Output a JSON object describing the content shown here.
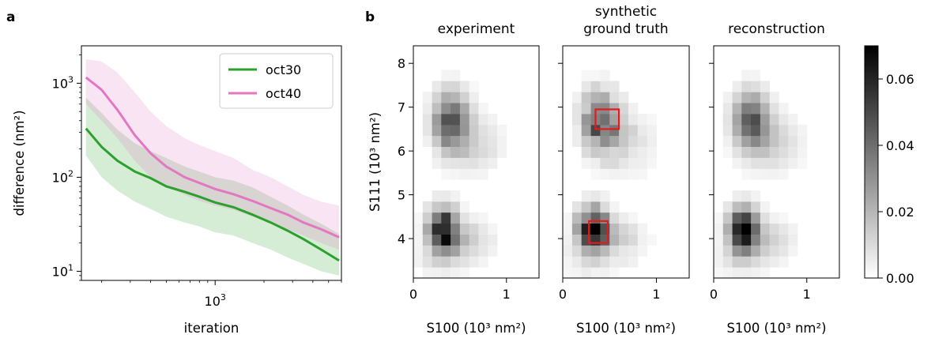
{
  "panels": {
    "a": "a",
    "b": "b"
  },
  "left_chart": {
    "type": "line",
    "xlabel": "iteration",
    "ylabel": "difference (nm²)",
    "xscale": "log",
    "yscale": "log",
    "xlim": [
      150,
      6000
    ],
    "ylim": [
      8,
      2500
    ],
    "xticks": [
      {
        "value": 1000,
        "base": "10",
        "exp": "3"
      }
    ],
    "yticks": [
      {
        "value": 10,
        "base": "10",
        "exp": "1"
      },
      {
        "value": 100,
        "base": "10",
        "exp": "2"
      },
      {
        "value": 1000,
        "base": "10",
        "exp": "3"
      }
    ],
    "legend_position": "top-right",
    "series": [
      {
        "name": "oct30",
        "color": "#2ca02c",
        "x": [
          160,
          200,
          250,
          320,
          400,
          500,
          650,
          800,
          1000,
          1300,
          1700,
          2200,
          2800,
          3500,
          4500,
          5800
        ],
        "y": [
          330,
          210,
          150,
          115,
          98,
          80,
          70,
          62,
          54,
          48,
          40,
          33,
          27,
          22,
          17,
          13
        ],
        "lower": [
          170,
          100,
          72,
          55,
          46,
          38,
          33,
          30,
          26,
          24,
          20,
          17,
          14,
          12,
          10,
          9
        ],
        "upper": [
          700,
          480,
          320,
          230,
          190,
          160,
          130,
          115,
          100,
          92,
          78,
          62,
          50,
          40,
          32,
          25
        ]
      },
      {
        "name": "oct40",
        "color": "#e377c2",
        "x": [
          160,
          200,
          250,
          320,
          400,
          500,
          650,
          800,
          1000,
          1300,
          1700,
          2200,
          2800,
          3500,
          4500,
          5800
        ],
        "y": [
          1150,
          850,
          520,
          280,
          180,
          130,
          100,
          87,
          75,
          66,
          56,
          47,
          40,
          33,
          28,
          23
        ],
        "lower": [
          600,
          400,
          260,
          150,
          100,
          80,
          65,
          56,
          50,
          45,
          38,
          33,
          28,
          24,
          20,
          17
        ],
        "upper": [
          1800,
          1700,
          1300,
          800,
          500,
          350,
          260,
          220,
          190,
          160,
          120,
          100,
          80,
          65,
          55,
          50
        ]
      }
    ]
  },
  "heatmaps": {
    "type": "heatmap",
    "titles": [
      "experiment",
      "synthetic ground truth",
      "reconstruction"
    ],
    "title_lines": [
      [
        "experiment"
      ],
      [
        "synthetic",
        "ground truth"
      ],
      [
        "reconstruction"
      ]
    ],
    "xlabel": "S100 (10³ nm²)",
    "ylabel": "S111 (10³ nm²)",
    "xlim": [
      0,
      1.35
    ],
    "ylim": [
      3.1,
      8.4
    ],
    "xticks": [
      0,
      1
    ],
    "yticks": [
      4,
      5,
      6,
      7,
      8
    ],
    "bin_w": 0.1,
    "bin_h": 0.25,
    "colormap": "gray_r",
    "colorbar": {
      "min": 0,
      "max": 0.07,
      "ticks": [
        "0.00",
        "0.02",
        "0.04",
        "0.06"
      ]
    },
    "highlight_boxes": [
      {
        "panel": 1,
        "x": [
          0.35,
          0.6
        ],
        "y": [
          6.5,
          6.95
        ],
        "color": "#e41a1c"
      },
      {
        "panel": 1,
        "x": [
          0.28,
          0.48
        ],
        "y": [
          3.9,
          4.4
        ],
        "color": "#e41a1c"
      }
    ],
    "clusters": [
      {
        "x": 0.4,
        "y": 6.7,
        "sx": 0.13,
        "sy": 0.45,
        "peak": 0.045
      },
      {
        "x": 0.65,
        "y": 6.2,
        "sx": 0.2,
        "sy": 0.45,
        "peak": 0.012
      },
      {
        "x": 0.32,
        "y": 4.2,
        "sx": 0.11,
        "sy": 0.35,
        "peak": 0.068
      },
      {
        "x": 0.6,
        "y": 4.0,
        "sx": 0.18,
        "sy": 0.3,
        "peak": 0.012
      },
      {
        "x": 0.3,
        "y": 3.5,
        "sx": 0.25,
        "sy": 0.25,
        "peak": 0.006
      }
    ]
  }
}
